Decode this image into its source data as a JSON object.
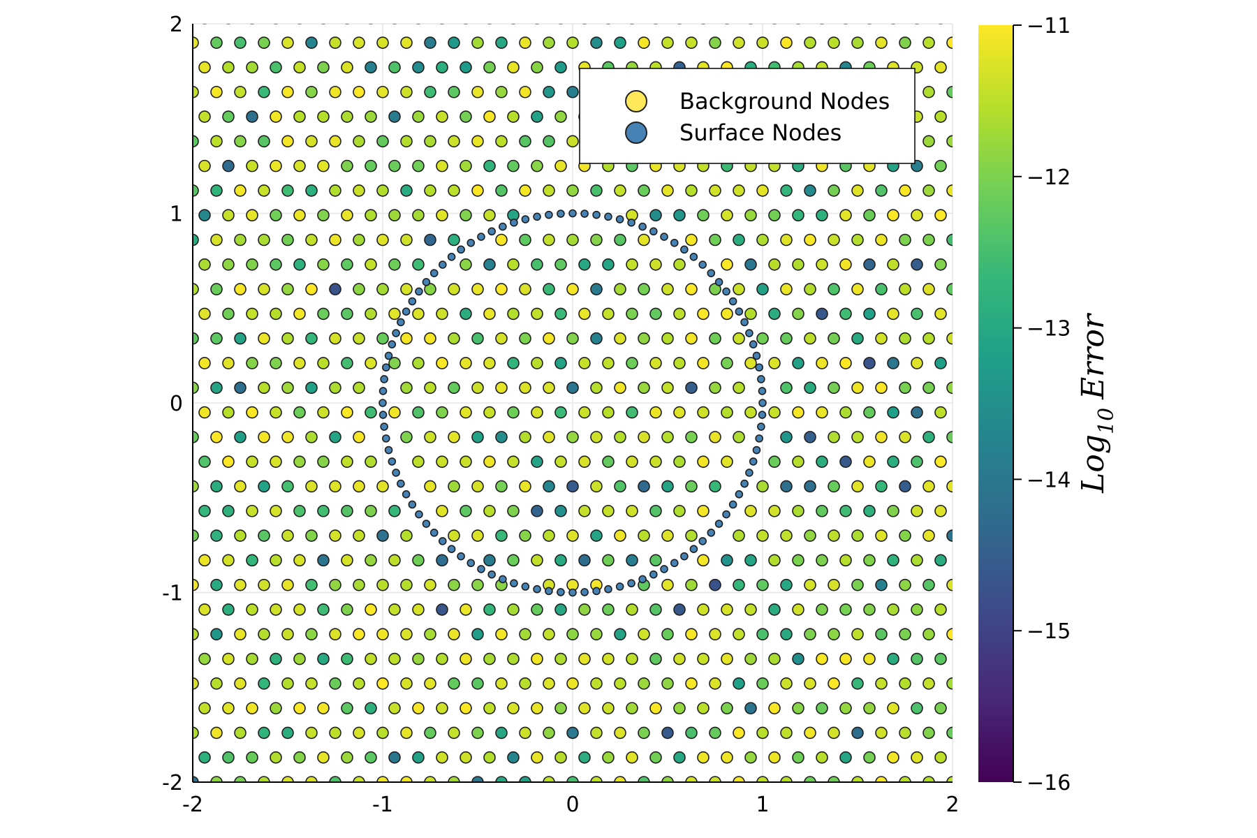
{
  "chart_data": {
    "type": "scatter",
    "title": "",
    "xlabel": "",
    "ylabel": "",
    "xlim": [
      -2,
      2
    ],
    "ylim": [
      -2,
      2
    ],
    "xticks": [
      "-2",
      "-1",
      "0",
      "1",
      "2"
    ],
    "yticks": [
      "-2",
      "-1",
      "0",
      "1",
      "2"
    ],
    "grid": true,
    "legend_position": "top-right",
    "series": [
      {
        "name": "Background Nodes",
        "color": "#fde725",
        "marker": "circle",
        "description_points": "staggered lattice of nodes covering [-2,2]x[-2,2]; row spacing 0.13, column spacing 0.125, alternate rows offset by half a column; marker color encodes log10 error (mostly -11 to -13, a few near -14 to -15)",
        "row_spacing": 0.13,
        "col_spacing": 0.125,
        "error_range": [
          -15,
          -11
        ]
      },
      {
        "name": "Surface Nodes",
        "color": "#4682b4",
        "marker": "circle",
        "shape": "unit circle",
        "center": [
          0,
          0
        ],
        "radius": 1.0,
        "count": 100
      }
    ],
    "colorbar": {
      "label_base": "Log",
      "label_sub": "10",
      "label_rest": "Error",
      "range": [
        -16,
        -11
      ],
      "ticks": [
        "−11",
        "−12",
        "−13",
        "−14",
        "−15",
        "−16"
      ],
      "colormap": "viridis",
      "stops": [
        "#440154",
        "#482878",
        "#3e4989",
        "#31688e",
        "#26828e",
        "#1f9e89",
        "#35b779",
        "#6ece58",
        "#b5de2b",
        "#fde725"
      ]
    }
  }
}
